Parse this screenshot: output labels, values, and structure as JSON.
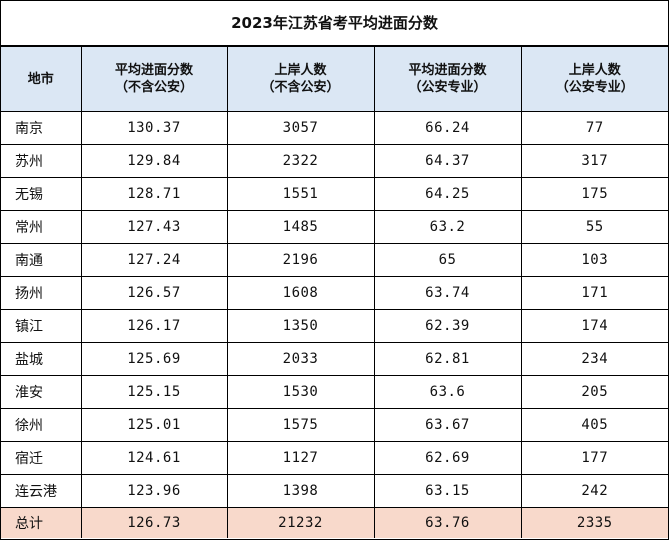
{
  "title": "2023年江苏省考平均进面分数",
  "headers": [
    {
      "line1": "地市",
      "line2": ""
    },
    {
      "line1": "平均进面分数",
      "line2": "（不含公安）"
    },
    {
      "line1": "上岸人数",
      "line2": "（不含公安）"
    },
    {
      "line1": "平均进面分数",
      "line2": "（公安专业）"
    },
    {
      "line1": "上岸人数",
      "line2": "（公安专业）"
    }
  ],
  "rows": [
    {
      "city": "南京",
      "score": "130.37",
      "count": "3057",
      "police_score": "66.24",
      "police_count": "77"
    },
    {
      "city": "苏州",
      "score": "129.84",
      "count": "2322",
      "police_score": "64.37",
      "police_count": "317"
    },
    {
      "city": "无锡",
      "score": "128.71",
      "count": "1551",
      "police_score": "64.25",
      "police_count": "175"
    },
    {
      "city": "常州",
      "score": "127.43",
      "count": "1485",
      "police_score": "63.2",
      "police_count": "55"
    },
    {
      "city": "南通",
      "score": "127.24",
      "count": "2196",
      "police_score": "65",
      "police_count": "103"
    },
    {
      "city": "扬州",
      "score": "126.57",
      "count": "1608",
      "police_score": "63.74",
      "police_count": "171"
    },
    {
      "city": "镇江",
      "score": "126.17",
      "count": "1350",
      "police_score": "62.39",
      "police_count": "174"
    },
    {
      "city": "盐城",
      "score": "125.69",
      "count": "2033",
      "police_score": "62.81",
      "police_count": "234"
    },
    {
      "city": "淮安",
      "score": "125.15",
      "count": "1530",
      "police_score": "63.6",
      "police_count": "205"
    },
    {
      "city": "徐州",
      "score": "125.01",
      "count": "1575",
      "police_score": "63.67",
      "police_count": "405"
    },
    {
      "city": "宿迁",
      "score": "124.61",
      "count": "1127",
      "police_score": "62.69",
      "police_count": "177"
    },
    {
      "city": "连云港",
      "score": "123.96",
      "count": "1398",
      "police_score": "63.15",
      "police_count": "242"
    }
  ],
  "total": {
    "city": "总计",
    "score": "126.73",
    "count": "21232",
    "police_score": "63.76",
    "police_count": "2335"
  },
  "colors": {
    "header_bg": "#dbe7f4",
    "total_bg": "#f8d9cb",
    "border": "#000000"
  }
}
